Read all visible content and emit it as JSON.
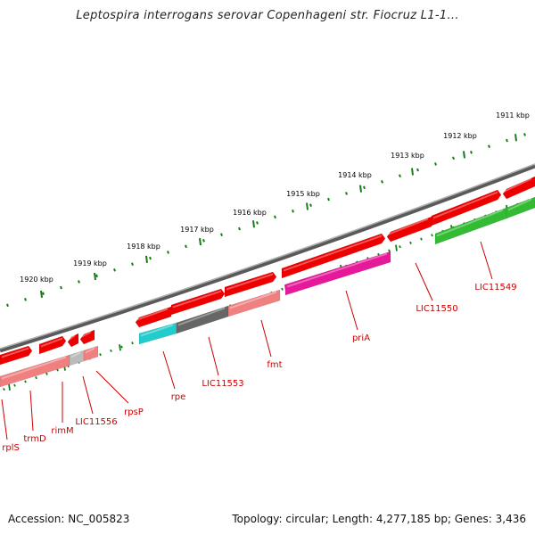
{
  "title": "Leptospira interrogans serovar Copenhageni str. Fiocruz L1-1...",
  "accession": "Accession: NC_005823",
  "summary": "Topology: circular; Length: 4,277,185 bp; Genes: 3,436",
  "colors": {
    "backbone": "#8a8a8a",
    "tick": "#1a7a1a",
    "gene_red": "#ee0000",
    "gene_pink": "#f08080",
    "gene_magenta": "#e6199b",
    "gene_green": "#33bb33",
    "gene_cyan": "#22cccc",
    "gene_gray": "#666666",
    "gene_lightgray": "#bbbbbb",
    "label": "#cc0000"
  },
  "scale_labels": [
    "1911 kbp",
    "1912 kbp",
    "1913 kbp",
    "1914 kbp",
    "1915 kbp",
    "1916 kbp",
    "1917 kbp",
    "1918 kbp",
    "1919 kbp",
    "1920 kbp"
  ],
  "gene_labels": [
    "LIC11549",
    "LIC11550",
    "priA",
    "fmt",
    "LIC11553",
    "rpe",
    "rpsP",
    "LIC11556",
    "rimM",
    "trmD",
    "rplS"
  ]
}
